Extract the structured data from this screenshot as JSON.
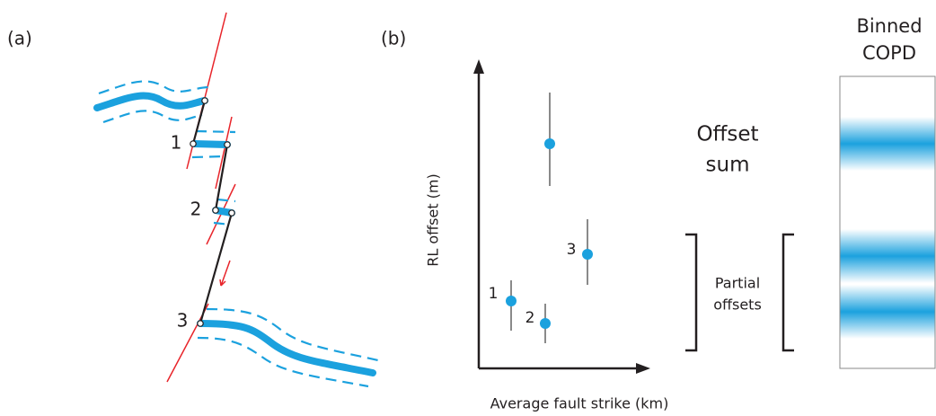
{
  "panel_a": {
    "label": "(a)",
    "offset_labels": [
      "1",
      "2",
      "3"
    ]
  },
  "panel_b": {
    "label": "(b)",
    "y_axis_label": "RL offset (m)",
    "x_axis_label": "Average fault strike (km)",
    "point_labels": [
      "1",
      "2",
      "3"
    ],
    "offset_sum": [
      "Offset",
      "sum"
    ],
    "partial_offsets": [
      "Partial",
      "offsets"
    ],
    "binned_title": [
      "Binned",
      "COPD"
    ]
  }
}
